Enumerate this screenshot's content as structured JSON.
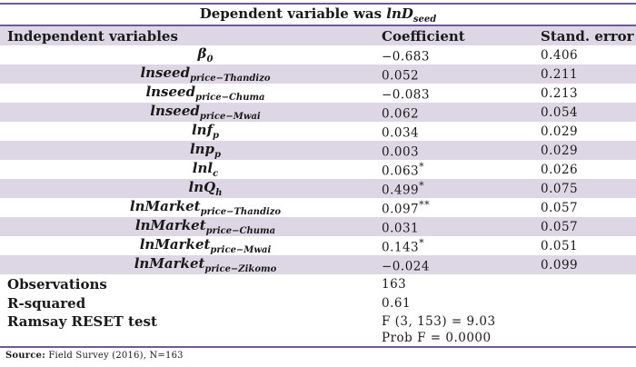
{
  "table": {
    "title_prefix": "Dependent variable was ",
    "title_var": "lnD",
    "title_var_sub": "seed",
    "header": {
      "col1": "Independent variables",
      "col2": "Coefficient",
      "col3": "Stand. error"
    },
    "rows": [
      {
        "name": "β",
        "sub": "0",
        "coef": "−0.683",
        "stars": "",
        "se": "0.406"
      },
      {
        "name": "lnseed",
        "sub": "price−Thandizo",
        "coef": "0.052",
        "stars": "",
        "se": "0.211"
      },
      {
        "name": "lnseed",
        "sub": "price−Chuma",
        "coef": "−0.083",
        "stars": "",
        "se": "0.213"
      },
      {
        "name": "lnseed",
        "sub": "price−Mwai",
        "coef": "0.062",
        "stars": "",
        "se": "0.054"
      },
      {
        "name": "lnf",
        "sub": "p",
        "coef": "0.034",
        "stars": "",
        "se": "0.029"
      },
      {
        "name": "lnp",
        "sub": "p",
        "coef": "0.003",
        "stars": "",
        "se": "0.029"
      },
      {
        "name": "lnl",
        "sub": "c",
        "coef": "0.063",
        "stars": "*",
        "se": "0.026"
      },
      {
        "name": "lnQ",
        "sub": "h",
        "coef": "0.499",
        "stars": "*",
        "se": "0.075"
      },
      {
        "name": "lnMarket",
        "sub": "price−Thandizo",
        "coef": "0.097",
        "stars": "**",
        "se": "0.057"
      },
      {
        "name": "lnMarket",
        "sub": "price−Chuma",
        "coef": "0.031",
        "stars": "",
        "se": "0.057"
      },
      {
        "name": "lnMarket",
        "sub": "price−Mwai",
        "coef": "0.143",
        "stars": "*",
        "se": "0.051"
      },
      {
        "name": "lnMarket",
        "sub": "price−Zikomo",
        "coef": "−0.024",
        "stars": "",
        "se": "0.099"
      }
    ],
    "summary": {
      "observations_label": "Observations",
      "observations_value": "163",
      "rsquared_label": "R-squared",
      "rsquared_value": "0.61",
      "reset_label": "Ramsay RESET test",
      "reset_line1": "F (3, 153) = 9.03",
      "reset_line2": "Prob F = 0.0000"
    },
    "source_label": "Source:",
    "source_text": " Field Survey (2016), N=163"
  },
  "colors": {
    "band": "#DDD6E5",
    "rule": "#6E5B97"
  }
}
